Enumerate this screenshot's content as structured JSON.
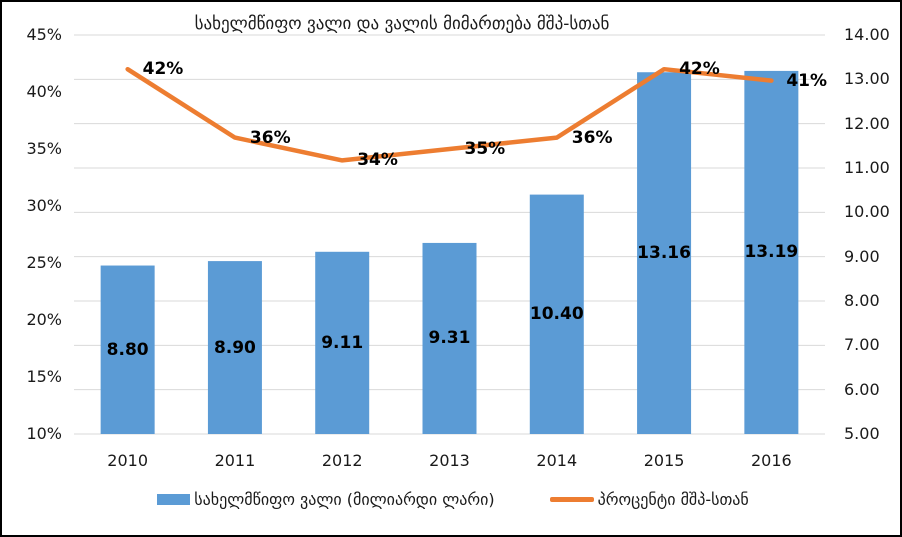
{
  "chart": {
    "title": "სახელმწიფო ვალი და ვალის მიმართება მშპ-სთან",
    "colors": {
      "bar": "#5B9BD5",
      "line": "#ED7D31",
      "grid": "#D9D9D9",
      "text": "#1A1A1A",
      "label": "#000000"
    },
    "legend": [
      {
        "label": "სახელმწიფო ვალი (მილიარდი ლარი)"
      },
      {
        "label": "პროცენტი მშპ-სთან"
      }
    ]
  },
  "chart_data": {
    "type": "bar+line combo",
    "title": "სახელმწიფო ვალი და ვალის მიმართება მშპ-სთან",
    "categories": [
      "2010",
      "2011",
      "2012",
      "2013",
      "2014",
      "2015",
      "2016"
    ],
    "series": [
      {
        "name": "სახელმწიფო ვალი (მილიარდი ლარი)",
        "type": "bar",
        "axis": "right",
        "values": [
          8.8,
          8.9,
          9.11,
          9.31,
          10.4,
          13.16,
          13.19
        ],
        "labels": [
          "8.80",
          "8.90",
          "9.11",
          "9.31",
          "10.40",
          "13.16",
          "13.19"
        ]
      },
      {
        "name": "პროცენტი მშპ-სთან",
        "type": "line",
        "axis": "left",
        "values": [
          42,
          36,
          34,
          35,
          36,
          42,
          41
        ],
        "labels": [
          "42%",
          "36%",
          "34%",
          "35%",
          "36%",
          "42%",
          "41%"
        ]
      }
    ],
    "left_axis": {
      "min": 10,
      "max": 45,
      "ticks": [
        "45%",
        "40%",
        "35%",
        "30%",
        "25%",
        "20%",
        "15%",
        "10%"
      ]
    },
    "right_axis": {
      "min": 5,
      "max": 14,
      "ticks": [
        "14.00",
        "13.00",
        "12.00",
        "11.00",
        "10.00",
        "9.00",
        "8.00",
        "7.00",
        "6.00",
        "5.00"
      ]
    },
    "grid": "horizontal",
    "legend_position": "bottom"
  }
}
